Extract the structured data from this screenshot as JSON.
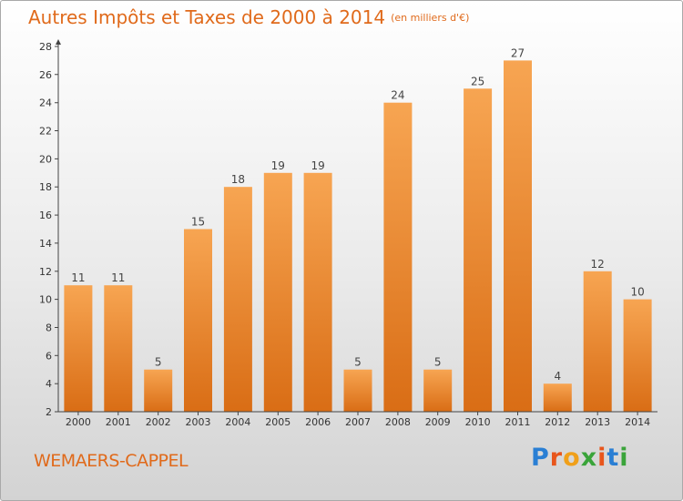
{
  "title": "Autres Impôts et Taxes de 2000 à 2014",
  "title_unit": "(en milliers d'€)",
  "commune": "WEMAERS-CAPPEL",
  "logo": {
    "letters": [
      "P",
      "r",
      "o",
      "x",
      "i",
      "t",
      "i"
    ],
    "colors": [
      "#2a7fd4",
      "#e8561c",
      "#f0a01a",
      "#3aa43a",
      "#e8561c",
      "#2a7fd4",
      "#3aa43a"
    ]
  },
  "colors": {
    "accent": "#e06a1b",
    "bar_top": "#f7a552",
    "bar_bottom": "#d96d15",
    "axis": "#444444"
  },
  "chart_data": {
    "type": "bar",
    "categories": [
      "2000",
      "2001",
      "2002",
      "2003",
      "2004",
      "2005",
      "2006",
      "2007",
      "2008",
      "2009",
      "2010",
      "2011",
      "2012",
      "2013",
      "2014"
    ],
    "values": [
      11,
      11,
      5,
      15,
      18,
      19,
      19,
      5,
      24,
      5,
      25,
      27,
      4,
      12,
      10
    ],
    "data_labels": [
      "11",
      "11",
      "5",
      "15",
      "18",
      "19",
      "19",
      "5",
      "24",
      "5",
      "25",
      "27",
      "4",
      "12",
      "10"
    ],
    "y_ticks": [
      "2",
      "4",
      "6",
      "8",
      "10",
      "12",
      "14",
      "16",
      "18",
      "20",
      "22",
      "24",
      "26",
      "28"
    ],
    "ylim": [
      2,
      28
    ],
    "grid": false,
    "legend": "none"
  }
}
